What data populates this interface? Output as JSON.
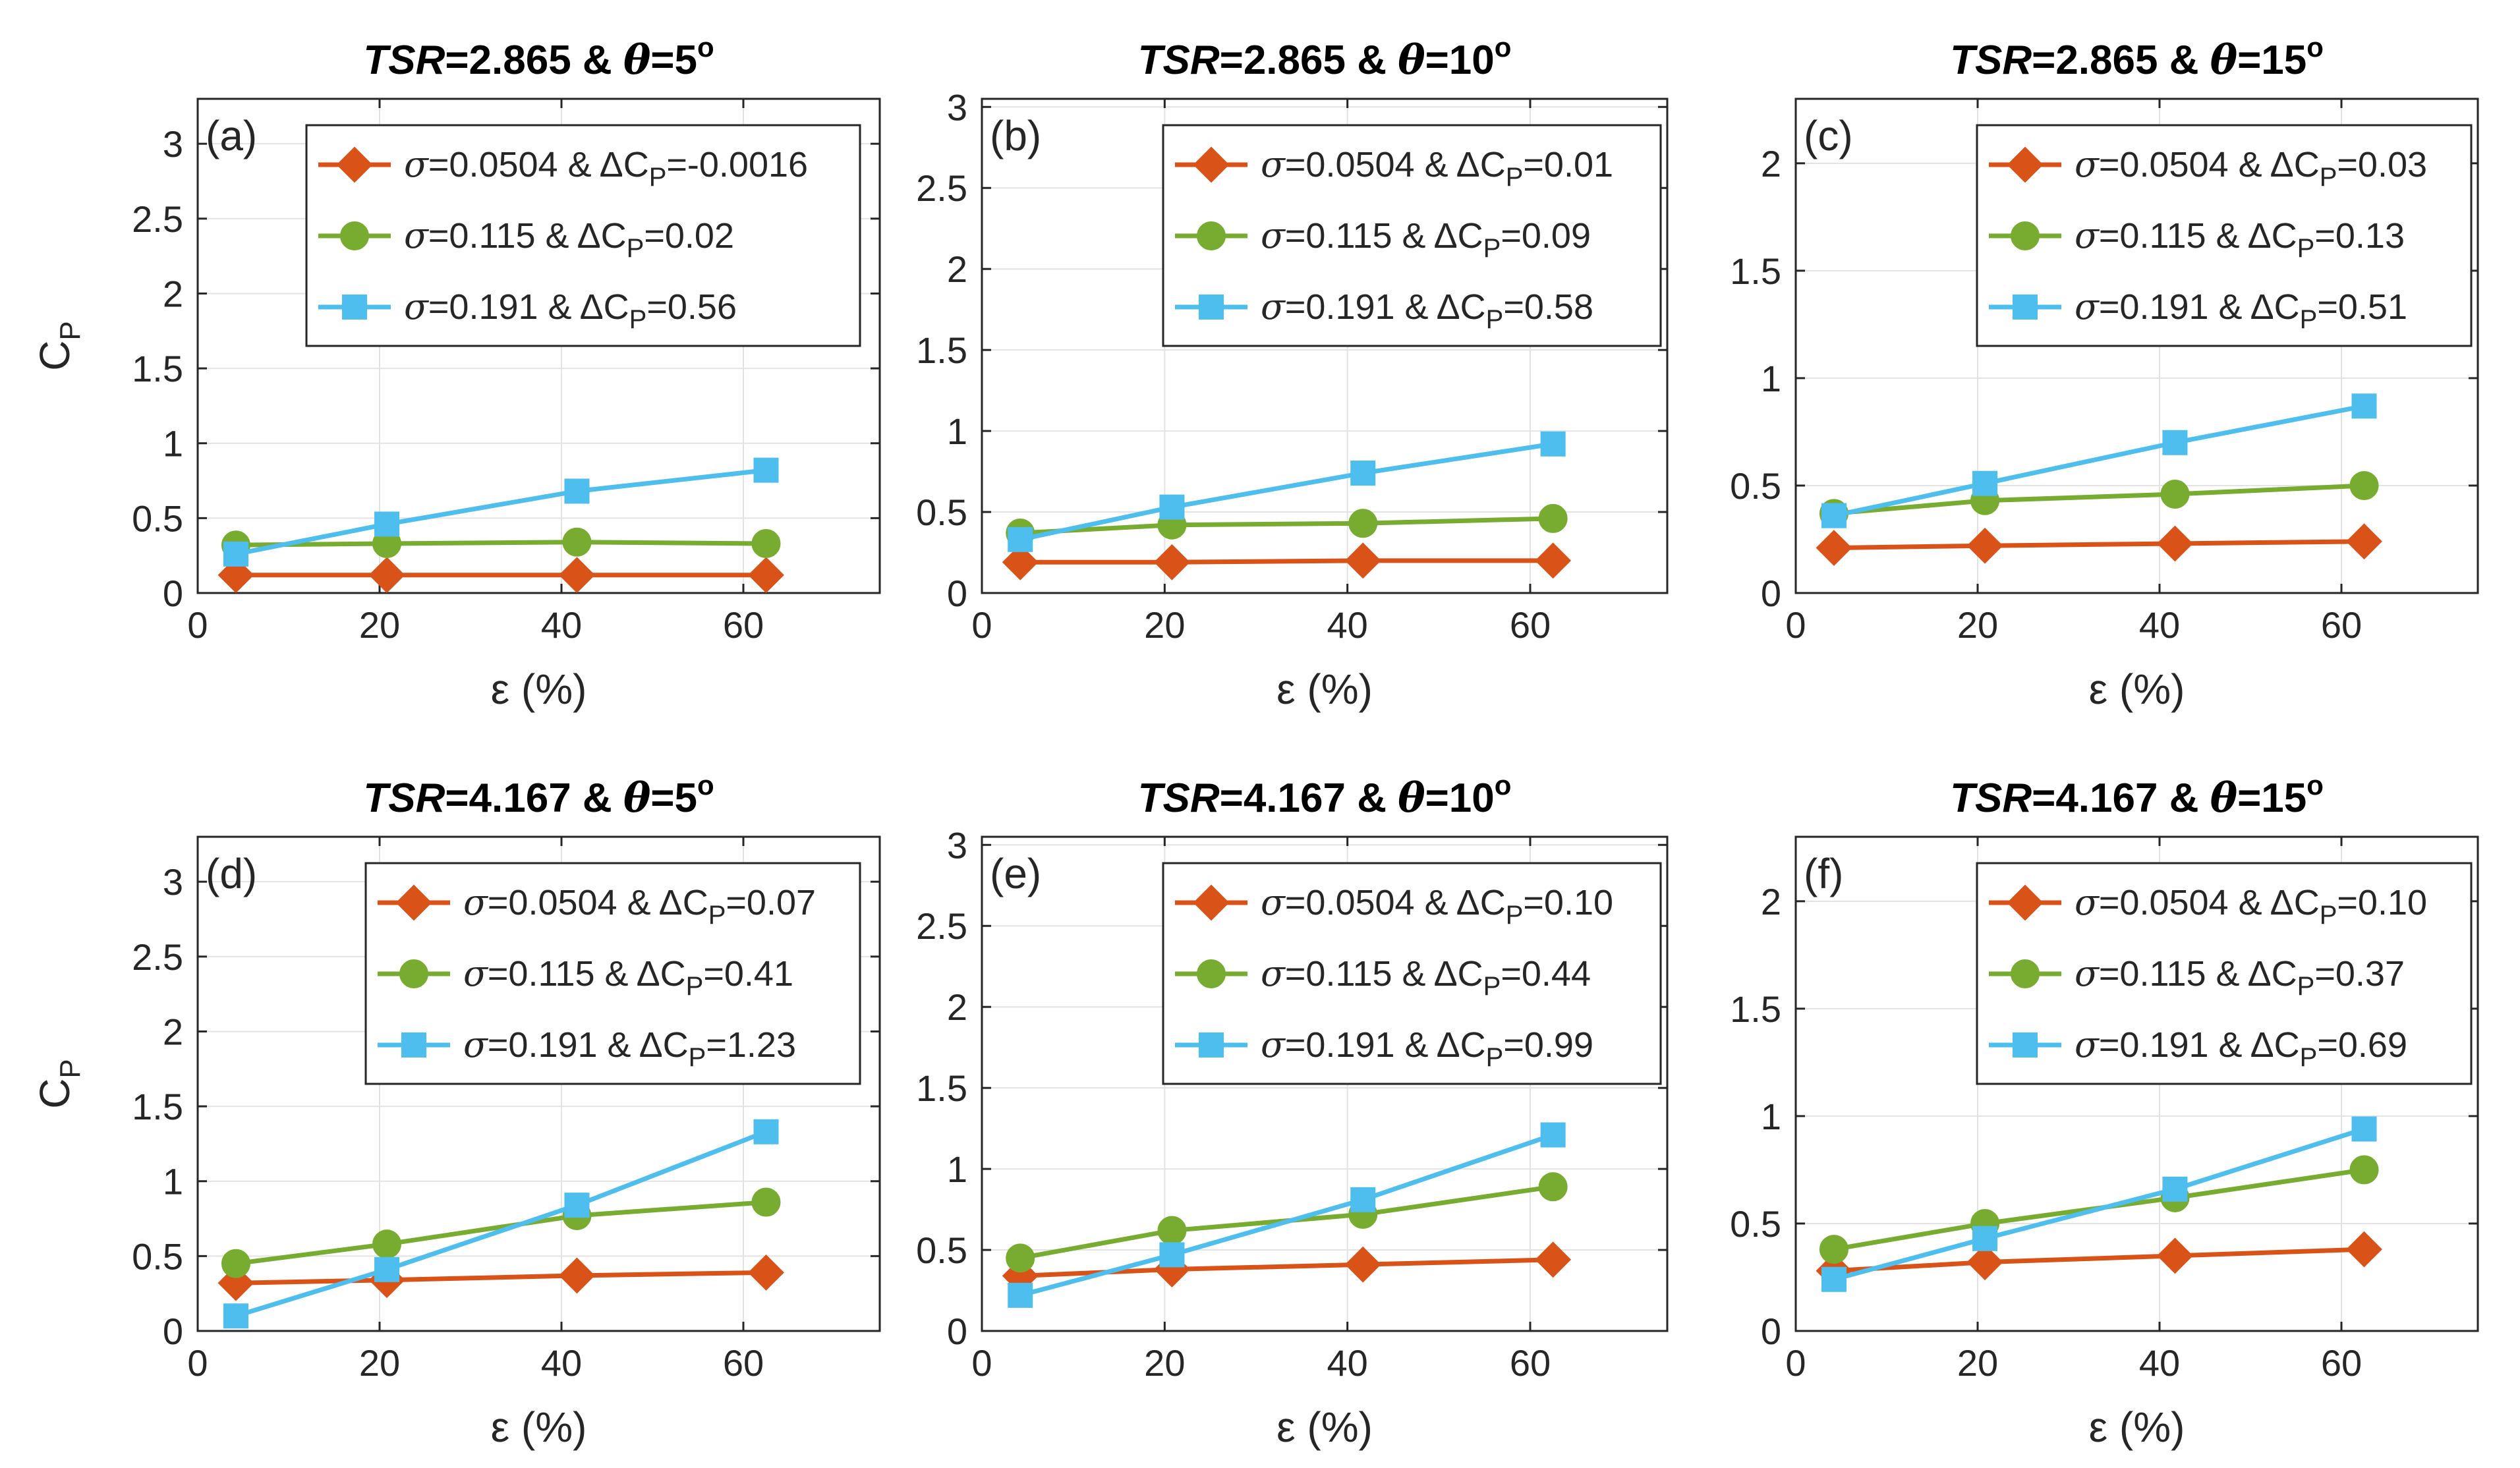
{
  "figure": {
    "ylabel_main": "C",
    "ylabel_sub": "P",
    "xlabel": "ε (%)",
    "tsr_word": "TSR",
    "theta_symbol": "θ",
    "sigma_symbol": "σ",
    "delta_symbol": "ΔC",
    "delta_sub": "P",
    "amp": " & ",
    "eq": "=",
    "deg": "o"
  },
  "colors": {
    "sigma_0.0504": "#D95319",
    "sigma_0.115": "#77AC30",
    "sigma_0.191": "#4DBEEE"
  },
  "chart_data": [
    {
      "panel": "(a)",
      "type": "line",
      "tsr": "2.865",
      "theta": "5",
      "x": [
        4.2,
        20.8,
        41.7,
        62.5
      ],
      "xlim": [
        0,
        75
      ],
      "xticks": [
        "0",
        "20",
        "40",
        "60"
      ],
      "ylim": [
        0,
        3.3
      ],
      "yticks": [
        "0",
        "0.5",
        "1",
        "1.5",
        "2",
        "2.5",
        "3"
      ],
      "ytick_values": [
        0,
        0.5,
        1,
        1.5,
        2,
        2.5,
        3
      ],
      "show_ylabel": true,
      "series": [
        {
          "name": "0.0504",
          "marker": "diamond",
          "delta": "-0.0016",
          "values": [
            0.12,
            0.12,
            0.12,
            0.12
          ]
        },
        {
          "name": "0.115",
          "marker": "circle",
          "delta": "0.02",
          "values": [
            0.32,
            0.33,
            0.34,
            0.33
          ]
        },
        {
          "name": "0.191",
          "marker": "square",
          "delta": "0.56",
          "values": [
            0.26,
            0.46,
            0.68,
            0.82
          ]
        }
      ]
    },
    {
      "panel": "(b)",
      "type": "line",
      "tsr": "2.865",
      "theta": "10",
      "x": [
        4.2,
        20.8,
        41.7,
        62.5
      ],
      "xlim": [
        0,
        75
      ],
      "xticks": [
        "0",
        "20",
        "40",
        "60"
      ],
      "ylim": [
        0,
        3.05
      ],
      "yticks": [
        "0",
        "0.5",
        "1",
        "1.5",
        "2",
        "2.5",
        "3"
      ],
      "ytick_values": [
        0,
        0.5,
        1,
        1.5,
        2,
        2.5,
        3
      ],
      "show_ylabel": false,
      "series": [
        {
          "name": "0.0504",
          "marker": "diamond",
          "delta": "0.01",
          "values": [
            0.19,
            0.19,
            0.2,
            0.2
          ]
        },
        {
          "name": "0.115",
          "marker": "circle",
          "delta": "0.09",
          "values": [
            0.37,
            0.42,
            0.43,
            0.46
          ]
        },
        {
          "name": "0.191",
          "marker": "square",
          "delta": "0.58",
          "values": [
            0.33,
            0.53,
            0.74,
            0.92
          ]
        }
      ]
    },
    {
      "panel": "(c)",
      "type": "line",
      "tsr": "2.865",
      "theta": "15",
      "x": [
        4.2,
        20.8,
        41.7,
        62.5
      ],
      "xlim": [
        0,
        75
      ],
      "xticks": [
        "0",
        "20",
        "40",
        "60"
      ],
      "ylim": [
        0,
        2.3
      ],
      "yticks": [
        "0",
        "0.5",
        "1",
        "1.5",
        "2"
      ],
      "ytick_values": [
        0,
        0.5,
        1,
        1.5,
        2
      ],
      "show_ylabel": false,
      "series": [
        {
          "name": "0.0504",
          "marker": "diamond",
          "delta": "0.03",
          "values": [
            0.21,
            0.22,
            0.23,
            0.24
          ]
        },
        {
          "name": "0.115",
          "marker": "circle",
          "delta": "0.13",
          "values": [
            0.37,
            0.43,
            0.46,
            0.5
          ]
        },
        {
          "name": "0.191",
          "marker": "square",
          "delta": "0.51",
          "values": [
            0.36,
            0.51,
            0.7,
            0.87
          ]
        }
      ]
    },
    {
      "panel": "(d)",
      "type": "line",
      "tsr": "4.167",
      "theta": "5",
      "x": [
        4.2,
        20.8,
        41.7,
        62.5
      ],
      "xlim": [
        0,
        75
      ],
      "xticks": [
        "0",
        "20",
        "40",
        "60"
      ],
      "ylim": [
        0,
        3.3
      ],
      "yticks": [
        "0",
        "0.5",
        "1",
        "1.5",
        "2",
        "2.5",
        "3"
      ],
      "ytick_values": [
        0,
        0.5,
        1,
        1.5,
        2,
        2.5,
        3
      ],
      "show_ylabel": true,
      "series": [
        {
          "name": "0.0504",
          "marker": "diamond",
          "delta": "0.07",
          "values": [
            0.32,
            0.34,
            0.37,
            0.39
          ]
        },
        {
          "name": "0.115",
          "marker": "circle",
          "delta": "0.41",
          "values": [
            0.45,
            0.58,
            0.77,
            0.86
          ]
        },
        {
          "name": "0.191",
          "marker": "square",
          "delta": "1.23",
          "values": [
            0.1,
            0.41,
            0.84,
            1.33
          ]
        }
      ]
    },
    {
      "panel": "(e)",
      "type": "line",
      "tsr": "4.167",
      "theta": "10",
      "x": [
        4.2,
        20.8,
        41.7,
        62.5
      ],
      "xlim": [
        0,
        75
      ],
      "xticks": [
        "0",
        "20",
        "40",
        "60"
      ],
      "ylim": [
        0,
        3.05
      ],
      "yticks": [
        "0",
        "0.5",
        "1",
        "1.5",
        "2",
        "2.5",
        "3"
      ],
      "ytick_values": [
        0,
        0.5,
        1,
        1.5,
        2,
        2.5,
        3
      ],
      "show_ylabel": false,
      "series": [
        {
          "name": "0.0504",
          "marker": "diamond",
          "delta": "0.10",
          "values": [
            0.34,
            0.38,
            0.41,
            0.44
          ]
        },
        {
          "name": "0.115",
          "marker": "circle",
          "delta": "0.44",
          "values": [
            0.45,
            0.62,
            0.72,
            0.89
          ]
        },
        {
          "name": "0.191",
          "marker": "square",
          "delta": "0.99",
          "values": [
            0.22,
            0.47,
            0.81,
            1.21
          ]
        }
      ]
    },
    {
      "panel": "(f)",
      "type": "line",
      "tsr": "4.167",
      "theta": "15",
      "x": [
        4.2,
        20.8,
        41.7,
        62.5
      ],
      "xlim": [
        0,
        75
      ],
      "xticks": [
        "0",
        "20",
        "40",
        "60"
      ],
      "ylim": [
        0,
        2.3
      ],
      "yticks": [
        "0",
        "0.5",
        "1",
        "1.5",
        "2"
      ],
      "ytick_values": [
        0,
        0.5,
        1,
        1.5,
        2
      ],
      "show_ylabel": false,
      "series": [
        {
          "name": "0.0504",
          "marker": "diamond",
          "delta": "0.10",
          "values": [
            0.28,
            0.32,
            0.35,
            0.38
          ]
        },
        {
          "name": "0.115",
          "marker": "circle",
          "delta": "0.37",
          "values": [
            0.38,
            0.5,
            0.62,
            0.75
          ]
        },
        {
          "name": "0.191",
          "marker": "square",
          "delta": "0.69",
          "values": [
            0.24,
            0.43,
            0.66,
            0.94
          ]
        }
      ]
    }
  ]
}
